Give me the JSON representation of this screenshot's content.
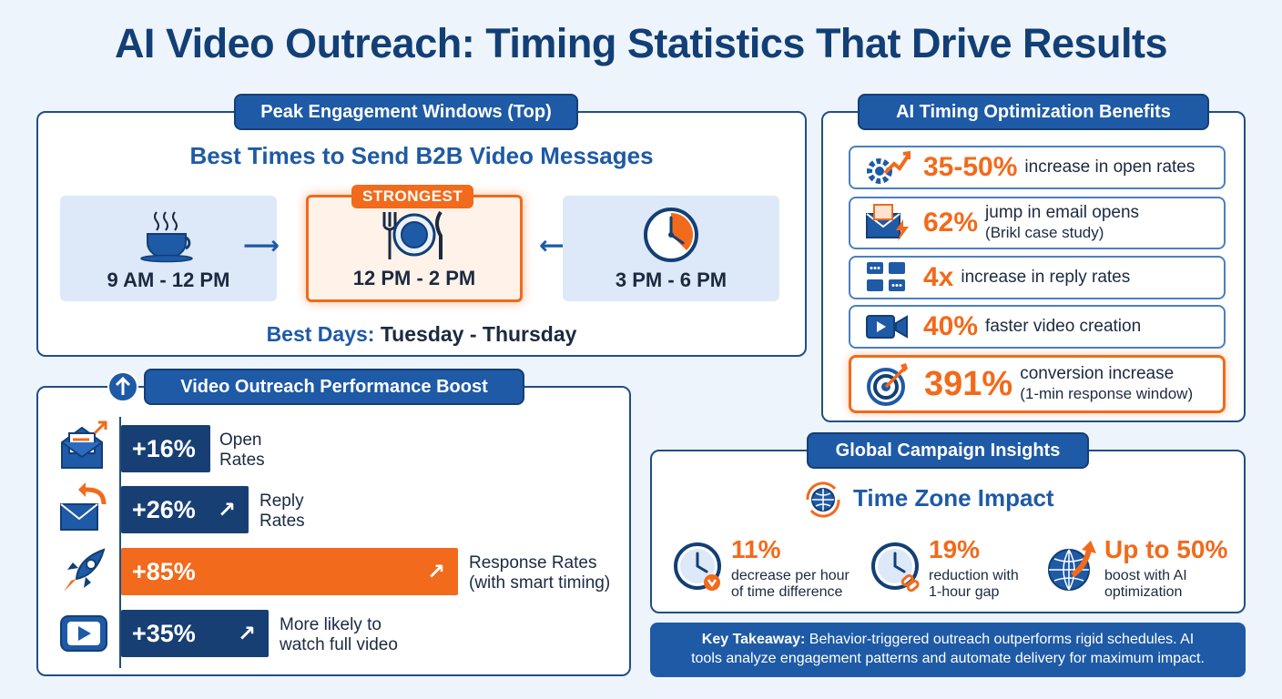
{
  "title": "AI Video Outreach: Timing Statistics That Drive Results",
  "peak": {
    "header": "Peak Engagement Windows (Top)",
    "subtitle": "Best Times to Send B2B Video Messages",
    "slots": [
      {
        "label": "9 AM - 12 PM",
        "icon": "coffee-cup-icon"
      },
      {
        "label": "12 PM - 2 PM",
        "icon": "plate-cutlery-icon",
        "badge": "STRONGEST"
      },
      {
        "label": "3 PM - 6 PM",
        "icon": "clock-icon"
      }
    ],
    "days_label": "Best Days:",
    "days_value": "Tuesday - Thursday"
  },
  "benefits": {
    "header": "AI Timing Optimization Benefits",
    "items": [
      {
        "num": "35-50%",
        "text": "increase in open rates",
        "sub": "",
        "icon": "gear-growth-icon"
      },
      {
        "num": "62%",
        "text": "jump in email opens",
        "sub": "(Brikl case study)",
        "icon": "email-flash-icon"
      },
      {
        "num": "4x",
        "text": "increase in reply rates",
        "sub": "",
        "icon": "chat-bubbles-icon"
      },
      {
        "num": "40%",
        "text": "faster video creation",
        "sub": "",
        "icon": "video-camera-icon"
      },
      {
        "num": "391%",
        "text": "conversion increase",
        "sub": "(1-min response window)",
        "icon": "target-icon"
      }
    ]
  },
  "boost": {
    "header": "Video Outreach Performance Boost",
    "items": [
      {
        "value": "+16%",
        "pct": 16,
        "label1": "Open",
        "label2": "Rates",
        "icon": "open-envelope-icon"
      },
      {
        "value": "+26%",
        "pct": 26,
        "label1": "Reply",
        "label2": "Rates",
        "icon": "reply-envelope-icon"
      },
      {
        "value": "+85%",
        "pct": 85,
        "label1": "Response Rates",
        "label2": "(with smart timing)",
        "icon": "rocket-icon"
      },
      {
        "value": "+35%",
        "pct": 35,
        "label1": "More likely to",
        "label2": "watch full video",
        "icon": "play-button-icon"
      }
    ]
  },
  "global": {
    "header": "Global Campaign Insights",
    "tz_title": "Time Zone Impact",
    "stats": [
      {
        "num": "11%",
        "line1": "decrease per hour",
        "line2": "of time difference",
        "icon": "clock-down-icon"
      },
      {
        "num": "19%",
        "line1": "reduction with",
        "line2": "1-hour gap",
        "icon": "clock-link-icon"
      },
      {
        "num": "Up to 50%",
        "line1": "boost with AI",
        "line2": "optimization",
        "icon": "globe-growth-icon"
      }
    ]
  },
  "takeaway": {
    "label": "Key Takeaway:",
    "text1": "Behavior-triggered outreach outperforms rigid schedules. AI",
    "text2": "tools analyze engagement patterns and automate delivery for maximum impact."
  },
  "colors": {
    "navy": "#123f75",
    "blue": "#1e5aa6",
    "orange": "#f26a1b"
  }
}
